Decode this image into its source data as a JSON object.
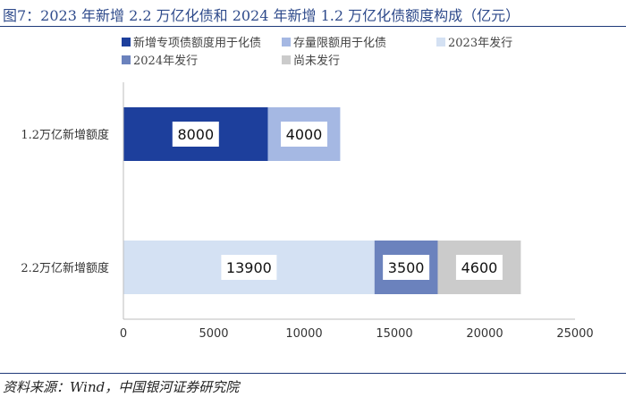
{
  "header": {
    "title": "图7：2023 年新增 2.2 万亿化债和 2024 年新增 1.2 万亿化债额度构成（亿元）"
  },
  "footer": {
    "source": "资料来源：Wind，中国银河证券研究院"
  },
  "chart_data": {
    "type": "bar",
    "orientation": "horizontal",
    "stacked": true,
    "categories": [
      "1.2万亿新增额度",
      "2.2万亿新增额度"
    ],
    "series": [
      {
        "name": "新增专项债额度用于化债",
        "values": [
          8000,
          0
        ],
        "color": "#1d3f9c"
      },
      {
        "name": "存量限额用于化债",
        "values": [
          4000,
          0
        ],
        "color": "#a5b8e3"
      },
      {
        "name": "2023年发行",
        "values": [
          0,
          13900
        ],
        "color": "#d4e1f3"
      },
      {
        "name": "2024年发行",
        "values": [
          0,
          3500
        ],
        "color": "#6b82bd"
      },
      {
        "name": "尚未发行",
        "values": [
          0,
          4600
        ],
        "color": "#cbcbcb"
      }
    ],
    "xlim": [
      0,
      25000
    ],
    "xticks": [
      0,
      5000,
      10000,
      15000,
      20000,
      25000
    ],
    "grid": false,
    "legend_position": "top"
  }
}
